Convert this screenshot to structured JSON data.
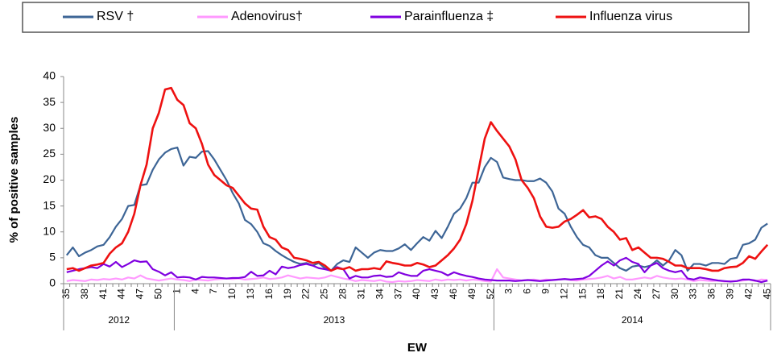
{
  "chart_data": {
    "type": "line",
    "y_label": "% of positive samples",
    "x_label": "EW",
    "ylim": [
      0,
      40
    ],
    "yticks": [
      0,
      5,
      10,
      15,
      20,
      25,
      30,
      35,
      40
    ],
    "grid": false,
    "legend": "top",
    "categories": [
      "35",
      null,
      null,
      "38",
      null,
      null,
      "41",
      null,
      null,
      "44",
      null,
      null,
      "47",
      null,
      null,
      "50",
      null,
      null,
      "1",
      null,
      null,
      "4",
      null,
      null,
      "7",
      null,
      null,
      "10",
      null,
      null,
      "13",
      null,
      null,
      "16",
      null,
      null,
      "19",
      null,
      null,
      "22",
      null,
      null,
      "25",
      null,
      null,
      "28",
      null,
      null,
      "31",
      null,
      null,
      "34",
      null,
      null,
      "37",
      null,
      null,
      "40",
      null,
      null,
      "43",
      null,
      null,
      "46",
      null,
      null,
      "49",
      null,
      null,
      "52",
      null,
      null,
      "3",
      null,
      null,
      "6",
      null,
      null,
      "9",
      null,
      null,
      "12",
      null,
      null,
      "15",
      null,
      null,
      "18",
      null,
      null,
      "21",
      null,
      null,
      "24",
      null,
      null,
      "27",
      null,
      null,
      "30",
      null,
      null,
      "33",
      null,
      null,
      "36",
      null,
      null,
      "39",
      null,
      null,
      "42",
      null,
      null,
      "45"
    ],
    "x_groups": [
      {
        "label": "2012",
        "count": 18
      },
      {
        "label": "2013",
        "count": 52
      },
      {
        "label": "2014",
        "count": 45
      }
    ],
    "series": [
      {
        "name": "RSV †",
        "color": "#3d6596",
        "values": [
          5.5,
          7,
          5.3,
          6,
          6.5,
          7.2,
          7.5,
          9,
          11,
          12.5,
          15,
          15.2,
          19,
          19.2,
          22,
          24,
          25.3,
          26,
          26.3,
          22.8,
          24.5,
          24.3,
          25.5,
          25.6,
          24,
          22,
          20,
          17.5,
          15.5,
          12.3,
          11.5,
          10,
          7.8,
          7.3,
          6.3,
          5.5,
          4.8,
          4.2,
          3.8,
          4,
          3.5,
          4,
          3,
          2.5,
          3.8,
          4.5,
          4.2,
          7,
          6,
          5,
          6,
          6.5,
          6.3,
          6.3,
          6.8,
          7.6,
          6.5,
          7.8,
          9,
          8.3,
          10.2,
          8.8,
          11,
          13.5,
          14.5,
          16.5,
          19.5,
          19.5,
          22.5,
          24.3,
          23.5,
          20.5,
          20.2,
          20,
          20,
          19.8,
          19.8,
          20.3,
          19.5,
          17.8,
          14.5,
          13.5,
          11,
          9,
          7.5,
          7,
          5.5,
          5,
          5,
          4,
          3,
          2.5,
          3.3,
          3.5,
          3.2,
          3.5,
          4.5,
          3.5,
          4.5,
          6.5,
          5.5,
          2.5,
          3.8,
          3.8,
          3.5,
          4,
          4,
          3.8,
          4.8,
          5,
          7.5,
          7.8,
          8.5,
          10.8,
          11.6
        ]
      },
      {
        "name": "Adenovirus†",
        "color": "#ff99ff",
        "values": [
          0.5,
          0.7,
          0.6,
          0.5,
          0.8,
          0.7,
          0.9,
          0.8,
          1,
          0.8,
          1.2,
          1,
          1.6,
          1,
          0.8,
          0.6,
          0.8,
          1,
          0.8,
          0.7,
          0.5,
          0.8,
          0.7,
          0.6,
          0.8,
          0.9,
          1,
          0.9,
          1,
          0.8,
          0.9,
          1,
          1.2,
          0.9,
          1,
          1.2,
          1.6,
          1.3,
          1,
          1.2,
          1.1,
          1,
          1.2,
          1.6,
          1.3,
          1,
          0.8,
          0.5,
          0.7,
          0.6,
          0.5,
          0.7,
          0.4,
          0.3,
          0.5,
          0.4,
          0.5,
          0.7,
          0.6,
          0.5,
          0.8,
          0.6,
          0.8,
          0.7,
          0.8,
          0.6,
          0.8,
          0.7,
          0.5,
          0.4,
          2.8,
          1.2,
          1,
          0.8,
          0.6,
          0.7,
          0.8,
          0.6,
          0.8,
          0.7,
          0.8,
          0.9,
          0.7,
          0.6,
          0.8,
          0.9,
          1,
          1.2,
          1.5,
          1,
          1.3,
          0.8,
          0.8,
          1,
          1.2,
          1,
          1.5,
          1.2,
          1,
          0.9,
          1,
          0.8,
          0.5,
          0.7,
          0.6,
          0.5,
          0.6,
          0.4,
          0.5,
          0.5,
          0.6,
          0.8,
          0.5,
          0.8,
          0.7
        ]
      },
      {
        "name": "Parainfluenza ‡",
        "color": "#8000e0",
        "values": [
          2.2,
          2.5,
          2.8,
          3,
          3.2,
          3,
          3.8,
          3.3,
          4.2,
          3.2,
          3.8,
          4.5,
          4.2,
          4.3,
          2.8,
          2.3,
          1.6,
          2.2,
          1.2,
          1.3,
          1.2,
          0.8,
          1.3,
          1.2,
          1.2,
          1.1,
          1,
          1.1,
          1.1,
          1.3,
          2.3,
          1.5,
          1.6,
          2.5,
          1.8,
          3.3,
          3,
          3.2,
          3.6,
          3.8,
          3.5,
          3,
          2.8,
          2.5,
          3.2,
          2.8,
          1,
          1.5,
          1.2,
          1.2,
          1.5,
          1.6,
          1.3,
          1.4,
          2.2,
          1.8,
          1.5,
          1.5,
          2.5,
          2.8,
          2.5,
          2.2,
          1.6,
          2.2,
          1.8,
          1.5,
          1.3,
          1,
          0.8,
          0.7,
          0.6,
          0.6,
          0.6,
          0.5,
          0.6,
          0.7,
          0.6,
          0.5,
          0.6,
          0.7,
          0.8,
          0.9,
          0.8,
          0.9,
          1,
          1.5,
          2.5,
          3.5,
          4.3,
          3.5,
          4.5,
          5,
          4.2,
          3.8,
          2.2,
          3.5,
          4,
          3,
          2.5,
          2.2,
          2.5,
          1,
          0.8,
          1.2,
          1,
          0.8,
          0.6,
          0.5,
          0.4,
          0.5,
          0.8,
          0.8,
          0.6,
          0.3,
          0.6
        ]
      },
      {
        "name": "Influenza virus",
        "color": "#ee1111",
        "values": [
          2.8,
          3,
          2.5,
          3,
          3.5,
          3.7,
          4,
          5.8,
          7,
          7.8,
          10,
          13.5,
          19,
          23,
          30,
          33,
          37.5,
          37.8,
          35.5,
          34.5,
          31,
          30,
          27,
          23,
          21,
          20,
          19,
          18.5,
          17,
          15.5,
          14.5,
          14.3,
          11,
          9,
          8.5,
          7,
          6.5,
          5,
          4.8,
          4.5,
          4,
          4.2,
          3.5,
          2.5,
          3,
          2.8,
          3.2,
          2.5,
          2.8,
          2.8,
          3,
          2.8,
          4.3,
          4,
          3.8,
          3.5,
          3.5,
          4,
          3.7,
          3.2,
          3.5,
          4.5,
          5.5,
          6.8,
          8.5,
          11.5,
          16,
          22,
          28,
          31.2,
          29.5,
          28,
          26.5,
          24,
          20,
          18.5,
          16.5,
          13,
          11,
          10.8,
          11,
          12,
          12.5,
          13.3,
          14.2,
          12.8,
          13,
          12.5,
          11,
          10,
          8.5,
          8.8,
          6.5,
          7,
          6,
          5,
          5,
          4.8,
          4.2,
          3.5,
          3.5,
          3,
          3,
          3,
          2.8,
          2.5,
          2.5,
          3,
          3.2,
          3.3,
          4,
          5.3,
          4.8,
          6.2,
          7.5
        ]
      }
    ]
  }
}
